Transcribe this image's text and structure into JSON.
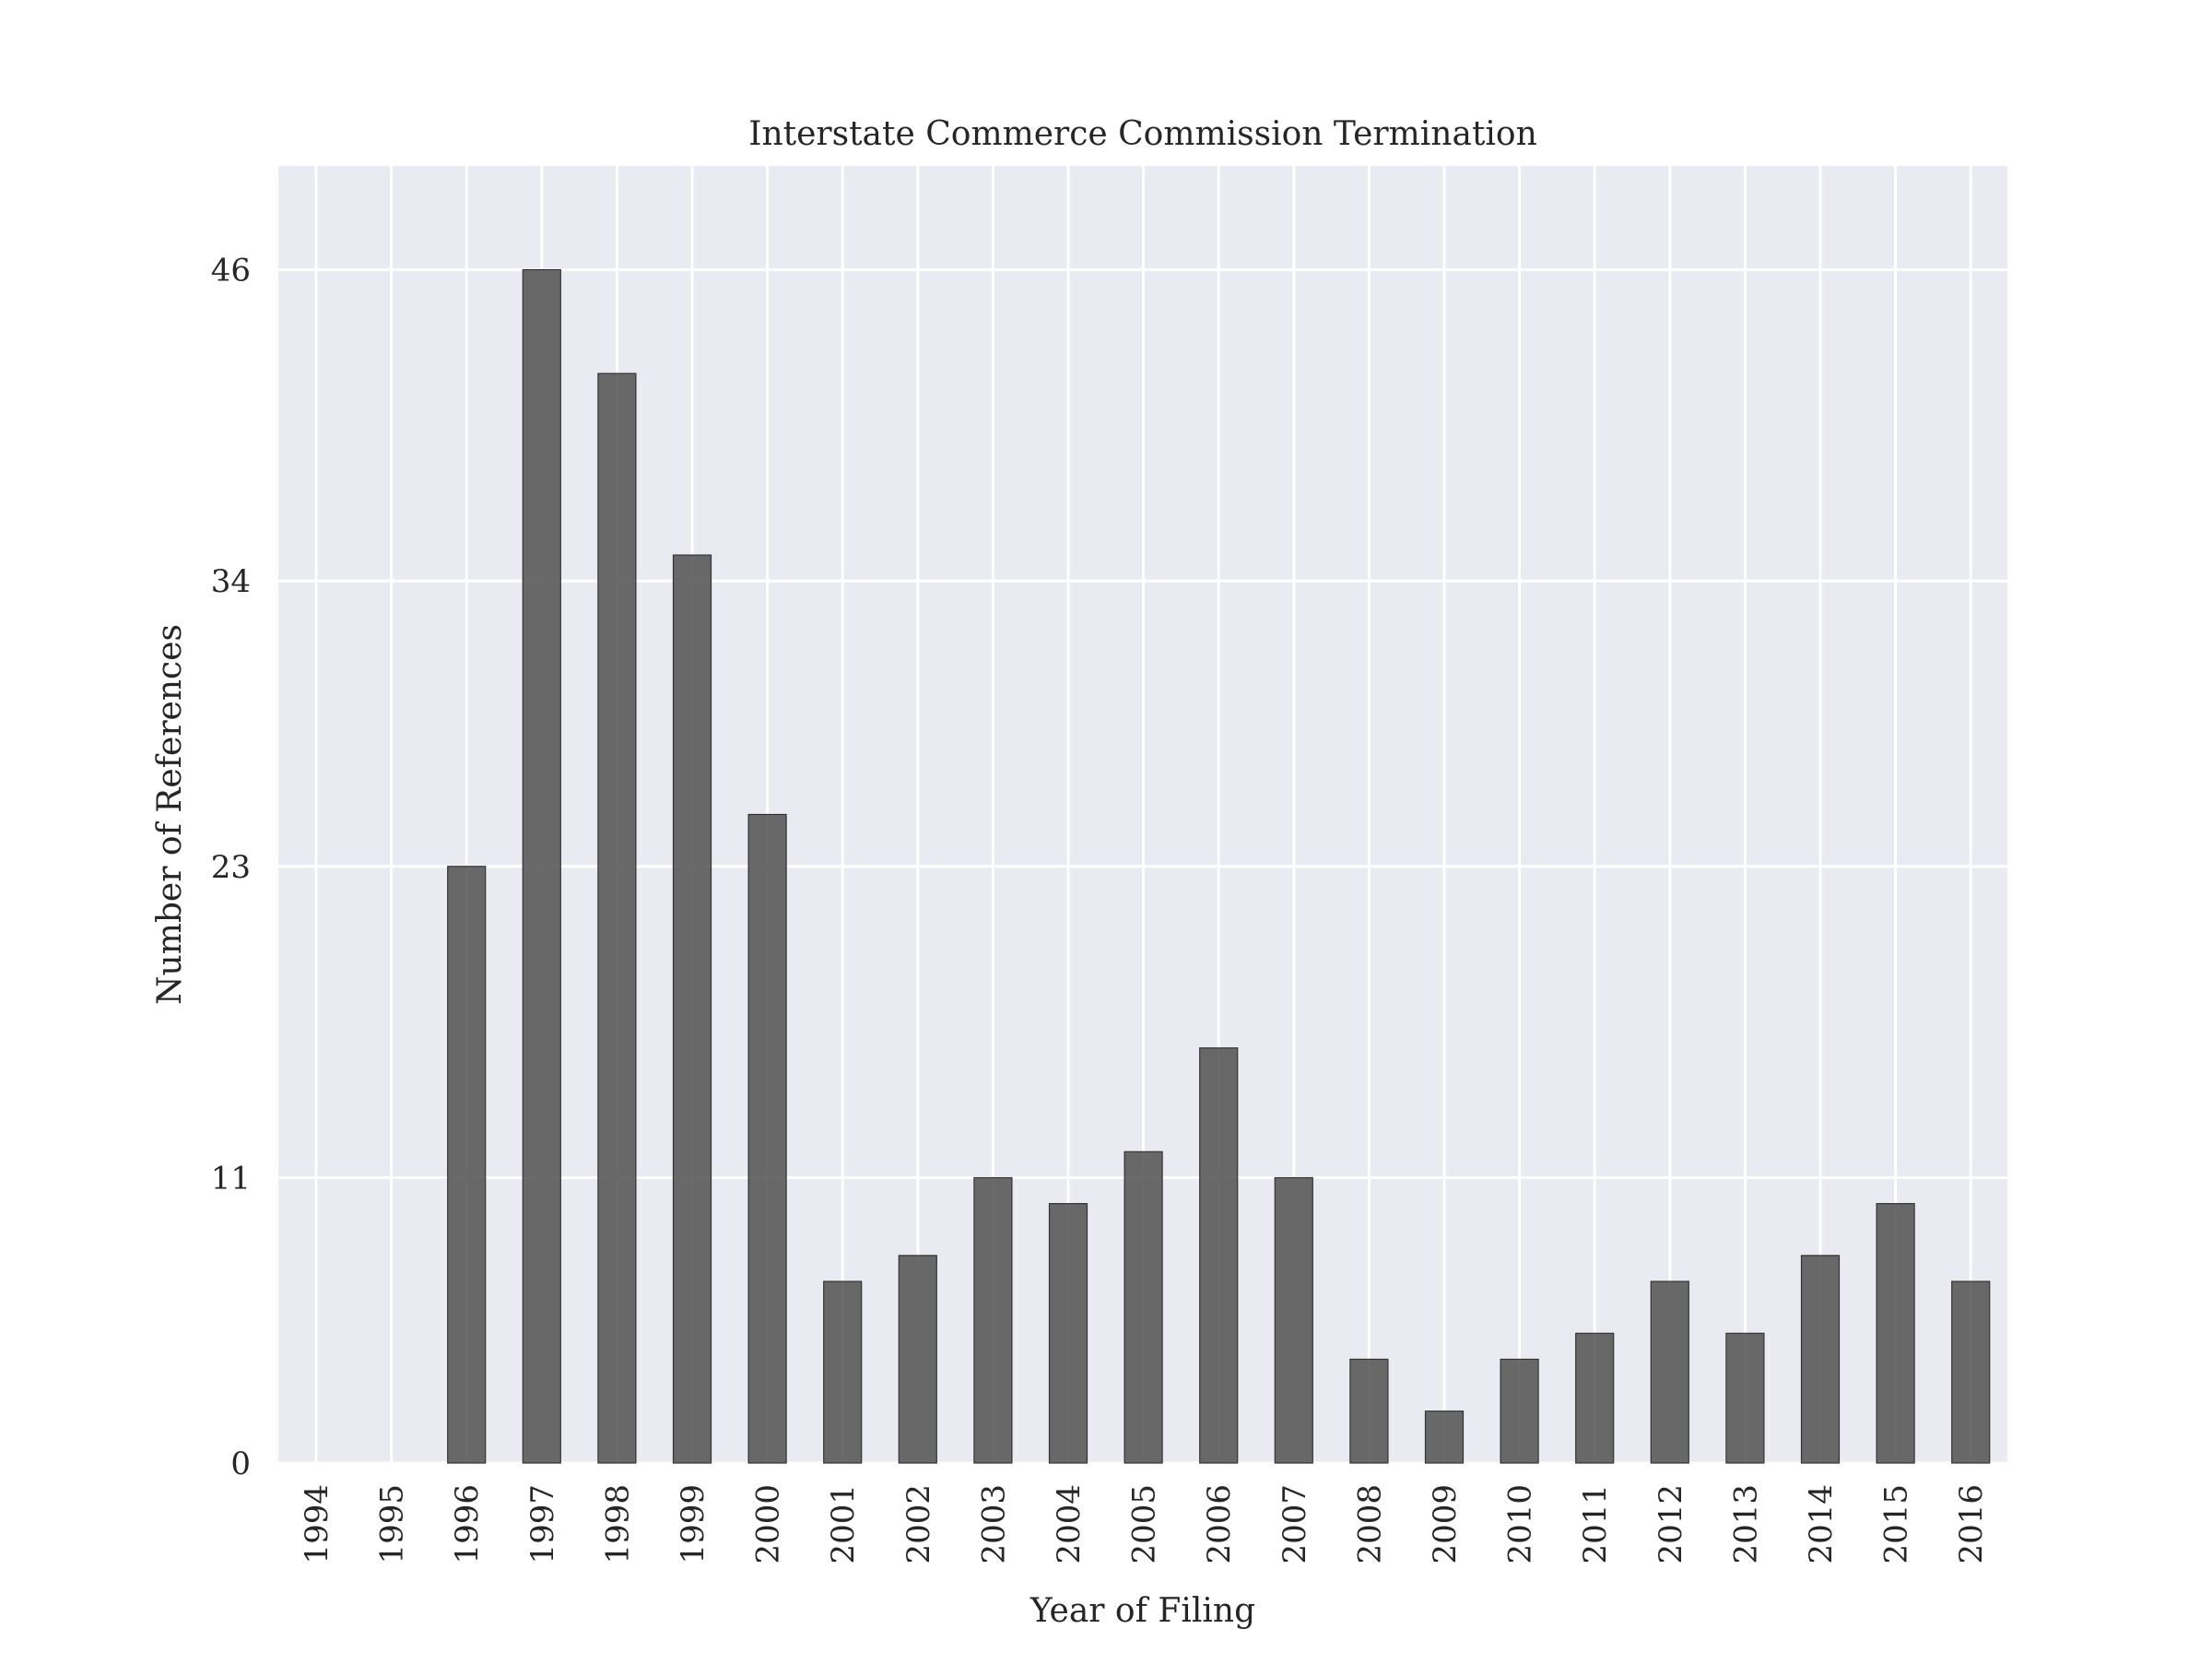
{
  "chart_data": {
    "type": "bar",
    "title": "Interstate Commerce Commission Termination",
    "xlabel": "Year of Filing",
    "ylabel": "Number of References",
    "categories": [
      "1994",
      "1995",
      "1996",
      "1997",
      "1998",
      "1999",
      "2000",
      "2001",
      "2002",
      "2003",
      "2004",
      "2005",
      "2006",
      "2007",
      "2008",
      "2009",
      "2010",
      "2011",
      "2012",
      "2013",
      "2014",
      "2015",
      "2016"
    ],
    "values": [
      0,
      0,
      23,
      46,
      42,
      35,
      25,
      7,
      8,
      11,
      10,
      12,
      16,
      11,
      4,
      2,
      4,
      5,
      7,
      5,
      8,
      10,
      7
    ],
    "yticks": [
      0,
      11,
      23,
      34,
      46
    ],
    "ylim": [
      0,
      50
    ],
    "grid": true,
    "legend": "none",
    "colors": {
      "bar": "#555555",
      "bar_edge": "#333333",
      "plot_background": "#eaeaf2",
      "grid": "#ffffff",
      "text": "#262626"
    }
  }
}
